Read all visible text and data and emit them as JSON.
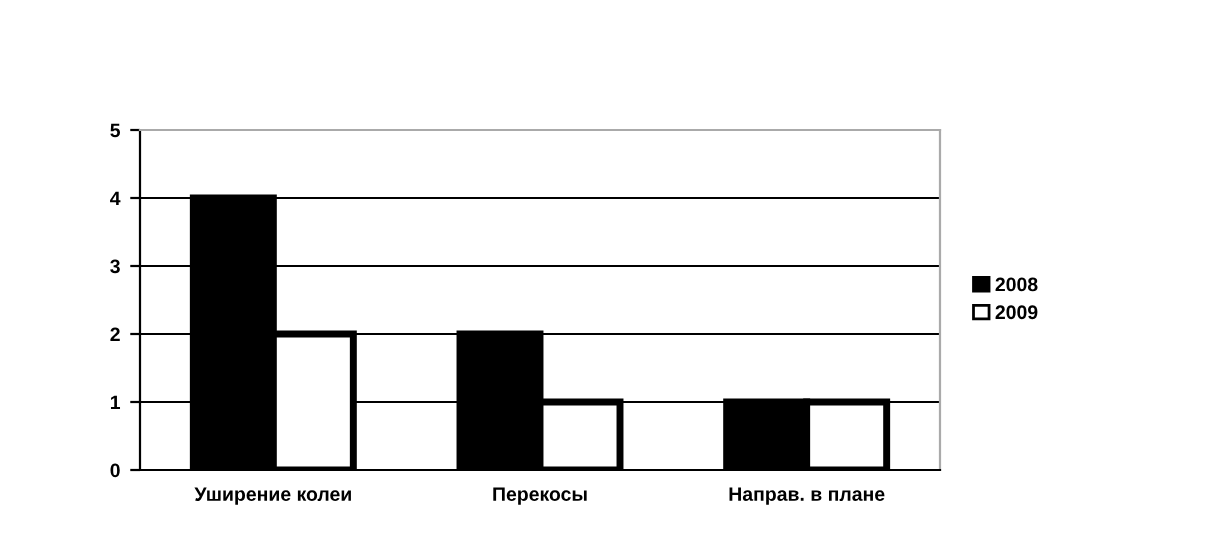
{
  "chart_data": {
    "type": "bar",
    "categories": [
      "Уширение колеи",
      "Перекосы",
      "Направ. в плане"
    ],
    "series": [
      {
        "name": "2008",
        "color": "#000000",
        "values": [
          4,
          2,
          1
        ]
      },
      {
        "name": "2009",
        "color": "#ffffff",
        "values": [
          2,
          1,
          1
        ]
      }
    ],
    "ylim": [
      0,
      5
    ],
    "yticks": [
      0,
      1,
      2,
      3,
      4,
      5
    ],
    "grid": "y",
    "legend": "right"
  }
}
